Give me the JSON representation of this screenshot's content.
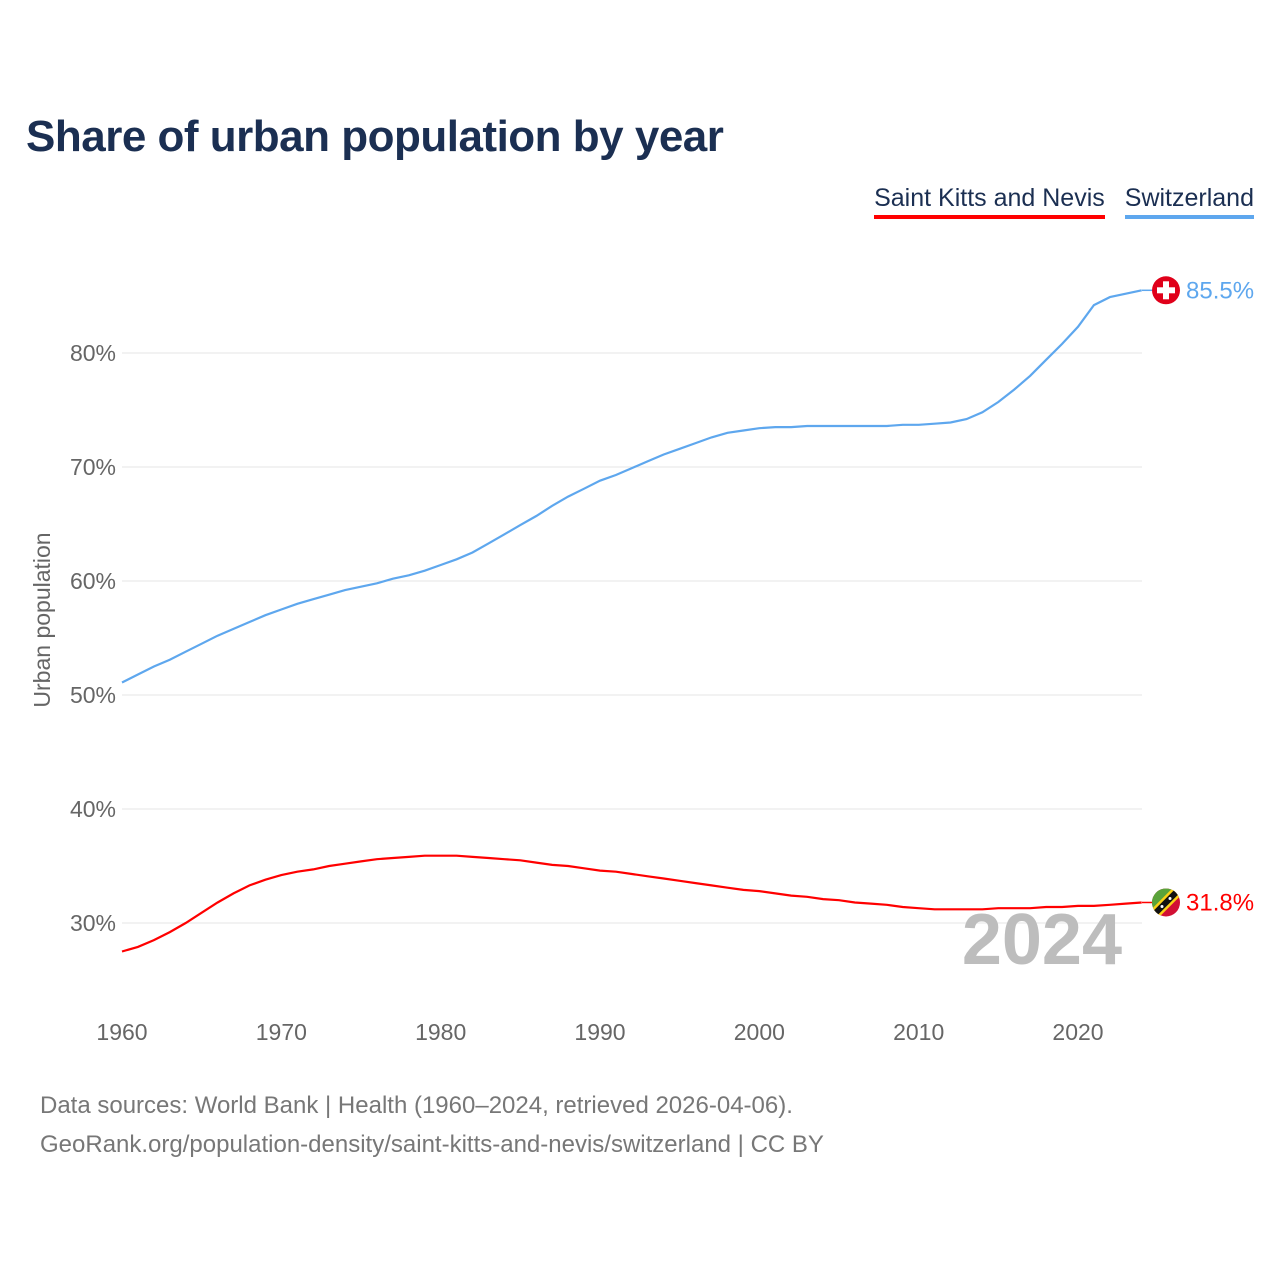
{
  "title": "Share of urban population by year",
  "footer": {
    "line1": "Data sources: World Bank | Health (1960–2024, retrieved 2026-04-06).",
    "line2": "GeoRank.org/population-density/saint-kitts-and-nevis/switzerland | CC BY"
  },
  "chart_data": {
    "type": "line",
    "title": "Share of urban population by year",
    "xlabel": "",
    "ylabel": "Urban population",
    "xlim": [
      1960,
      2024
    ],
    "ylim": [
      24,
      88
    ],
    "x_ticks": [
      "1960",
      "1970",
      "1980",
      "1990",
      "2000",
      "2010",
      "2020"
    ],
    "y_ticks": [
      {
        "value": 30,
        "label": "30%"
      },
      {
        "value": 40,
        "label": "40%"
      },
      {
        "value": 50,
        "label": "50%"
      },
      {
        "value": 60,
        "label": "60%"
      },
      {
        "value": 70,
        "label": "70%"
      },
      {
        "value": 80,
        "label": "80%"
      }
    ],
    "grid": true,
    "legend_placement": "top-right",
    "year_watermark": "2024",
    "x": [
      1960,
      1961,
      1962,
      1963,
      1964,
      1965,
      1966,
      1967,
      1968,
      1969,
      1970,
      1971,
      1972,
      1973,
      1974,
      1975,
      1976,
      1977,
      1978,
      1979,
      1980,
      1981,
      1982,
      1983,
      1984,
      1985,
      1986,
      1987,
      1988,
      1989,
      1990,
      1991,
      1992,
      1993,
      1994,
      1995,
      1996,
      1997,
      1998,
      1999,
      2000,
      2001,
      2002,
      2003,
      2004,
      2005,
      2006,
      2007,
      2008,
      2009,
      2010,
      2011,
      2012,
      2013,
      2014,
      2015,
      2016,
      2017,
      2018,
      2019,
      2020,
      2021,
      2022,
      2023,
      2024
    ],
    "series": [
      {
        "name": "Saint Kitts and Nevis",
        "color": "#ff0000",
        "end_label": "31.8%",
        "flag": "saint-kitts-and-nevis-flag",
        "values": [
          27.5,
          27.9,
          28.5,
          29.2,
          30.0,
          30.9,
          31.8,
          32.6,
          33.3,
          33.8,
          34.2,
          34.5,
          34.7,
          35.0,
          35.2,
          35.4,
          35.6,
          35.7,
          35.8,
          35.9,
          35.9,
          35.9,
          35.8,
          35.7,
          35.6,
          35.5,
          35.3,
          35.1,
          35.0,
          34.8,
          34.6,
          34.5,
          34.3,
          34.1,
          33.9,
          33.7,
          33.5,
          33.3,
          33.1,
          32.9,
          32.8,
          32.6,
          32.4,
          32.3,
          32.1,
          32.0,
          31.8,
          31.7,
          31.6,
          31.4,
          31.3,
          31.2,
          31.2,
          31.2,
          31.2,
          31.3,
          31.3,
          31.3,
          31.4,
          31.4,
          31.5,
          31.5,
          31.6,
          31.7,
          31.8
        ]
      },
      {
        "name": "Switzerland",
        "color": "#5ea7ee",
        "end_label": "85.5%",
        "flag": "switzerland-flag",
        "values": [
          51.1,
          51.8,
          52.5,
          53.1,
          53.8,
          54.5,
          55.2,
          55.8,
          56.4,
          57.0,
          57.5,
          58.0,
          58.4,
          58.8,
          59.2,
          59.5,
          59.8,
          60.2,
          60.5,
          60.9,
          61.4,
          61.9,
          62.5,
          63.3,
          64.1,
          64.9,
          65.7,
          66.6,
          67.4,
          68.1,
          68.8,
          69.3,
          69.9,
          70.5,
          71.1,
          71.6,
          72.1,
          72.6,
          73.0,
          73.2,
          73.4,
          73.5,
          73.5,
          73.6,
          73.6,
          73.6,
          73.6,
          73.6,
          73.6,
          73.7,
          73.7,
          73.8,
          73.9,
          74.2,
          74.8,
          75.7,
          76.8,
          78.0,
          79.4,
          80.8,
          82.3,
          84.2,
          84.9,
          85.2,
          85.5
        ]
      }
    ]
  }
}
